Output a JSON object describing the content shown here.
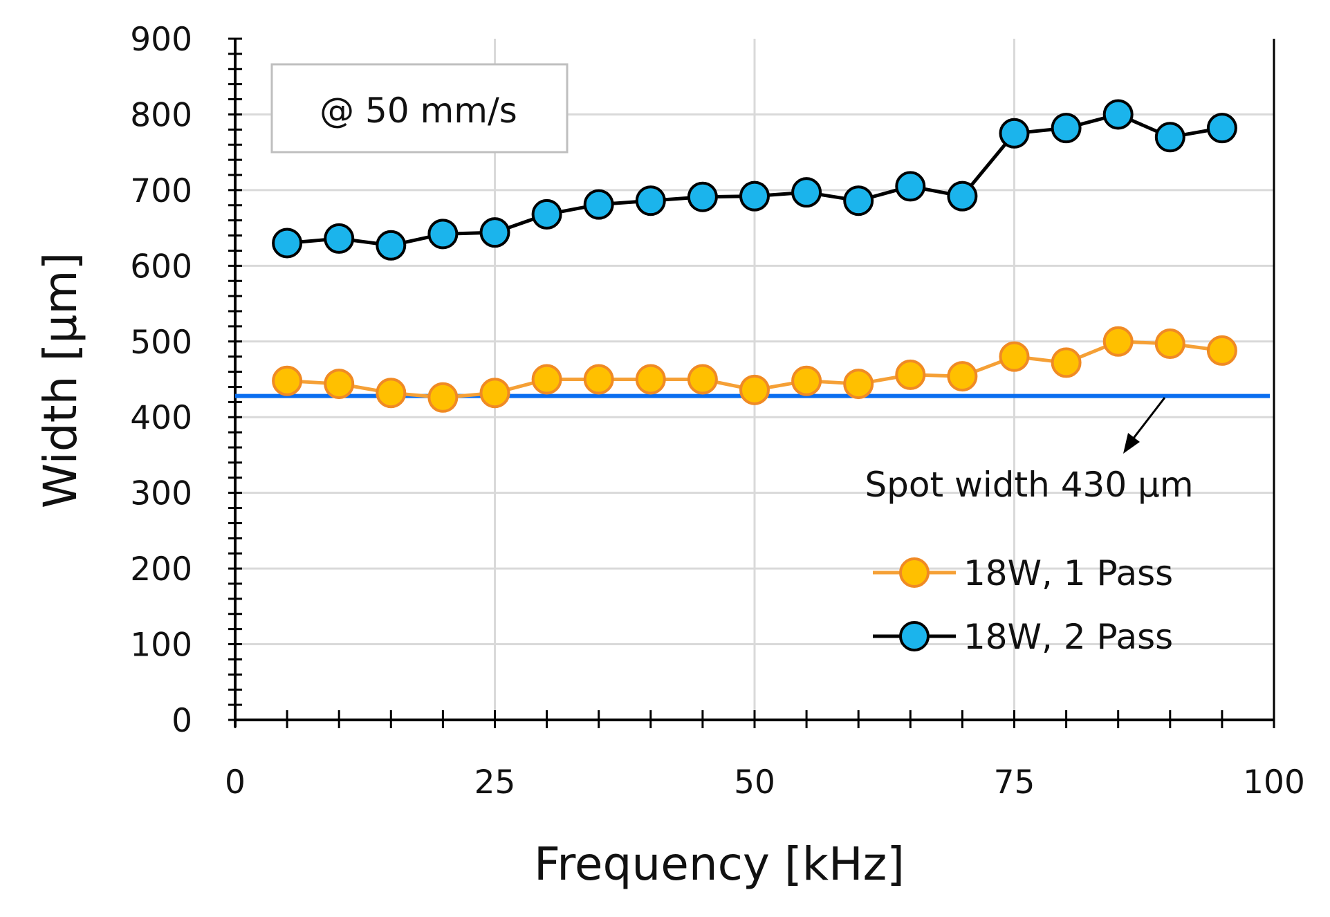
{
  "chart_data": {
    "type": "line",
    "title": "",
    "xlabel": "Frequency [kHz]",
    "ylabel": "Width [µm]",
    "xlim": [
      0,
      100
    ],
    "ylim": [
      0,
      900
    ],
    "xticks": [
      "0",
      "25",
      "50",
      "75",
      "100"
    ],
    "yticks": [
      "0",
      "100",
      "200",
      "300",
      "400",
      "500",
      "600",
      "700",
      "800",
      "900"
    ],
    "grid": true,
    "x": [
      5,
      10,
      15,
      20,
      25,
      30,
      35,
      40,
      45,
      50,
      55,
      60,
      65,
      70,
      75,
      80,
      85,
      90,
      95
    ],
    "series": [
      {
        "name": "18W, 1 Pass",
        "line_color": "#F5A036",
        "marker_fill": "#FFC000",
        "marker_edge": "#F08A24",
        "values": [
          448,
          444,
          432,
          426,
          432,
          450,
          450,
          450,
          450,
          436,
          448,
          444,
          456,
          454,
          480,
          472,
          500,
          497,
          488
        ]
      },
      {
        "name": "18W, 2 Pass",
        "line_color": "#000000",
        "marker_fill": "#1BB4EC",
        "marker_edge": "#000000",
        "values": [
          630,
          636,
          627,
          642,
          644,
          668,
          681,
          686,
          691,
          692,
          697,
          686,
          705,
          692,
          775,
          782,
          800,
          770,
          782
        ]
      }
    ],
    "reference_line": {
      "label": "Spot width 430 µm",
      "value": 428,
      "color": "#0A6EF0"
    },
    "annotation_box": "@ 50 mm/s",
    "legend_location": "bottom-right"
  }
}
